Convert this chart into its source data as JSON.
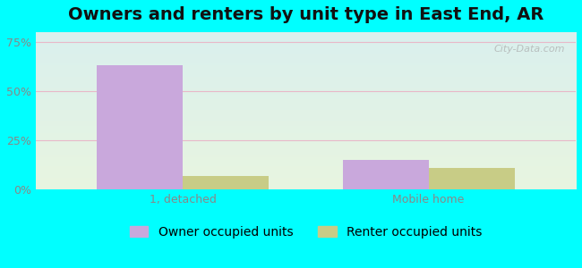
{
  "title": "Owners and renters by unit type in East End, AR",
  "categories": [
    "1, detached",
    "Mobile home"
  ],
  "owner_values": [
    63,
    15
  ],
  "renter_values": [
    7,
    11
  ],
  "owner_color": "#c9a8dc",
  "renter_color": "#c8cc86",
  "yticks": [
    0,
    25,
    50,
    75
  ],
  "ytick_labels": [
    "0%",
    "25%",
    "50%",
    "75%"
  ],
  "ylim": [
    0,
    80
  ],
  "bar_width": 0.35,
  "background_top": "#e0f5f5",
  "background_bottom": "#e8f5e0",
  "outer_bg": "#00ffff",
  "grid_color": "#e8b8c8",
  "title_fontsize": 14,
  "legend_fontsize": 10,
  "tick_fontsize": 9,
  "watermark": "City-Data.com"
}
